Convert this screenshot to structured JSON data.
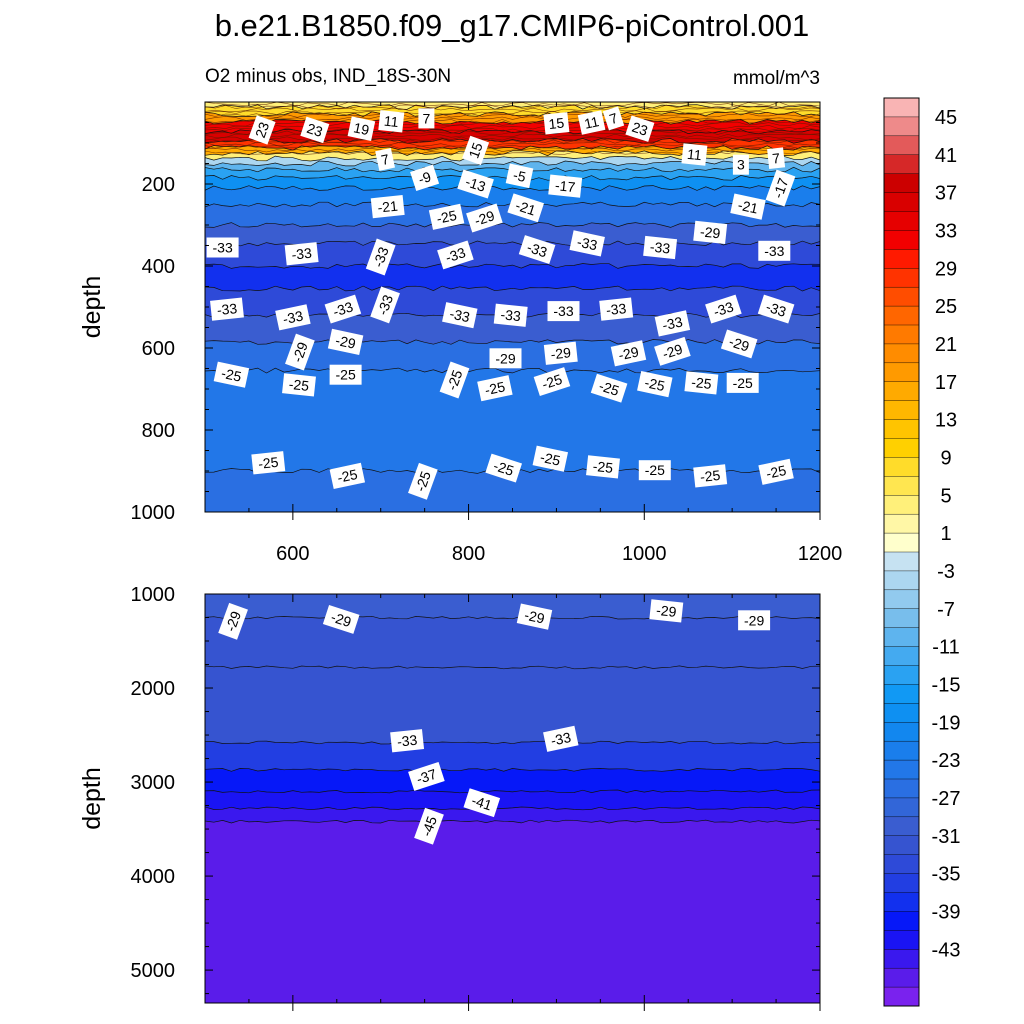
{
  "chart_data": {
    "type": "contour",
    "title": "b.e21.B1850.f09_g17.CMIP6-piControl.001",
    "subtitle_left": "O2 minus obs, IND_18S-30N",
    "units": "mmol/m^3",
    "xlim": [
      500,
      1200
    ],
    "x_ticks": [
      600,
      800,
      1000,
      1200
    ],
    "panels": [
      {
        "name": "upper",
        "ylabel": "depth",
        "ylim": [
          0,
          1000
        ],
        "y_ticks": [
          200,
          400,
          600,
          800,
          1000
        ],
        "show_x_ticklabels": true,
        "bands": [
          {
            "top": 0,
            "bottom": 12,
            "value": 5
          },
          {
            "top": 12,
            "bottom": 30,
            "value": 9
          },
          {
            "top": 30,
            "bottom": 48,
            "value": 19
          },
          {
            "top": 48,
            "bottom": 72,
            "value": 33
          },
          {
            "top": 72,
            "bottom": 95,
            "value": 37
          },
          {
            "top": 95,
            "bottom": 112,
            "value": 29
          },
          {
            "top": 112,
            "bottom": 125,
            "value": 17
          },
          {
            "top": 125,
            "bottom": 138,
            "value": 5
          },
          {
            "top": 138,
            "bottom": 150,
            "value": -3
          },
          {
            "top": 150,
            "bottom": 165,
            "value": -9
          },
          {
            "top": 165,
            "bottom": 185,
            "value": -13
          },
          {
            "top": 185,
            "bottom": 210,
            "value": -17
          },
          {
            "top": 210,
            "bottom": 250,
            "value": -21
          },
          {
            "top": 250,
            "bottom": 300,
            "value": -25
          },
          {
            "top": 300,
            "bottom": 345,
            "value": -29
          },
          {
            "top": 345,
            "bottom": 400,
            "value": -33
          },
          {
            "top": 400,
            "bottom": 455,
            "value": -37
          },
          {
            "top": 455,
            "bottom": 520,
            "value": -33
          },
          {
            "top": 520,
            "bottom": 585,
            "value": -29
          },
          {
            "top": 585,
            "bottom": 655,
            "value": -25
          },
          {
            "top": 655,
            "bottom": 900,
            "value": -23
          },
          {
            "top": 900,
            "bottom": 1000,
            "value": -25
          }
        ],
        "contour_labels": [
          {
            "x": 565,
            "y": 68,
            "text": "23"
          },
          {
            "x": 625,
            "y": 68,
            "text": "23"
          },
          {
            "x": 678,
            "y": 65,
            "text": "19"
          },
          {
            "x": 712,
            "y": 47,
            "text": "11"
          },
          {
            "x": 752,
            "y": 40,
            "text": "7"
          },
          {
            "x": 900,
            "y": 52,
            "text": "15"
          },
          {
            "x": 940,
            "y": 50,
            "text": "11"
          },
          {
            "x": 965,
            "y": 40,
            "text": "7"
          },
          {
            "x": 995,
            "y": 65,
            "text": "23"
          },
          {
            "x": 808,
            "y": 118,
            "text": "15"
          },
          {
            "x": 1057,
            "y": 128,
            "text": "11"
          },
          {
            "x": 1110,
            "y": 153,
            "text": "3"
          },
          {
            "x": 1150,
            "y": 137,
            "text": "7"
          },
          {
            "x": 705,
            "y": 140,
            "text": "7"
          },
          {
            "x": 750,
            "y": 185,
            "text": "-9"
          },
          {
            "x": 808,
            "y": 200,
            "text": "-13"
          },
          {
            "x": 858,
            "y": 180,
            "text": "-5"
          },
          {
            "x": 910,
            "y": 205,
            "text": "-17"
          },
          {
            "x": 1155,
            "y": 210,
            "text": "-17"
          },
          {
            "x": 708,
            "y": 255,
            "text": "-21"
          },
          {
            "x": 775,
            "y": 280,
            "text": "-25"
          },
          {
            "x": 818,
            "y": 283,
            "text": "-29"
          },
          {
            "x": 865,
            "y": 258,
            "text": "-21"
          },
          {
            "x": 1118,
            "y": 255,
            "text": "-21"
          },
          {
            "x": 1075,
            "y": 318,
            "text": "-29"
          },
          {
            "x": 520,
            "y": 355,
            "text": "-33"
          },
          {
            "x": 610,
            "y": 370,
            "text": "-33"
          },
          {
            "x": 700,
            "y": 378,
            "text": "-33"
          },
          {
            "x": 785,
            "y": 373,
            "text": "-33"
          },
          {
            "x": 878,
            "y": 360,
            "text": "-33"
          },
          {
            "x": 935,
            "y": 345,
            "text": "-33"
          },
          {
            "x": 1018,
            "y": 355,
            "text": "-33"
          },
          {
            "x": 1148,
            "y": 363,
            "text": "-33"
          },
          {
            "x": 525,
            "y": 505,
            "text": "-33"
          },
          {
            "x": 600,
            "y": 525,
            "text": "-33"
          },
          {
            "x": 657,
            "y": 505,
            "text": "-33"
          },
          {
            "x": 705,
            "y": 495,
            "text": "-33"
          },
          {
            "x": 790,
            "y": 520,
            "text": "-33"
          },
          {
            "x": 848,
            "y": 520,
            "text": "-33"
          },
          {
            "x": 908,
            "y": 510,
            "text": "-33"
          },
          {
            "x": 968,
            "y": 505,
            "text": "-33"
          },
          {
            "x": 1032,
            "y": 540,
            "text": "-33"
          },
          {
            "x": 1090,
            "y": 505,
            "text": "-33"
          },
          {
            "x": 1150,
            "y": 505,
            "text": "-33"
          },
          {
            "x": 660,
            "y": 585,
            "text": "-29"
          },
          {
            "x": 608,
            "y": 610,
            "text": "-29"
          },
          {
            "x": 842,
            "y": 625,
            "text": "-29"
          },
          {
            "x": 905,
            "y": 613,
            "text": "-29"
          },
          {
            "x": 982,
            "y": 613,
            "text": "-29"
          },
          {
            "x": 1032,
            "y": 608,
            "text": "-29"
          },
          {
            "x": 1108,
            "y": 590,
            "text": "-29"
          },
          {
            "x": 530,
            "y": 665,
            "text": "-25"
          },
          {
            "x": 607,
            "y": 690,
            "text": "-25"
          },
          {
            "x": 660,
            "y": 665,
            "text": "-25"
          },
          {
            "x": 784,
            "y": 678,
            "text": "-25"
          },
          {
            "x": 830,
            "y": 698,
            "text": "-25"
          },
          {
            "x": 895,
            "y": 682,
            "text": "-25"
          },
          {
            "x": 960,
            "y": 698,
            "text": "-25"
          },
          {
            "x": 1012,
            "y": 688,
            "text": "-25"
          },
          {
            "x": 1065,
            "y": 685,
            "text": "-25"
          },
          {
            "x": 1112,
            "y": 685,
            "text": "-25"
          },
          {
            "x": 572,
            "y": 880,
            "text": "-25"
          },
          {
            "x": 662,
            "y": 912,
            "text": "-25"
          },
          {
            "x": 748,
            "y": 925,
            "text": "-25"
          },
          {
            "x": 840,
            "y": 893,
            "text": "-25"
          },
          {
            "x": 893,
            "y": 870,
            "text": "-25"
          },
          {
            "x": 953,
            "y": 890,
            "text": "-25"
          },
          {
            "x": 1012,
            "y": 898,
            "text": "-25"
          },
          {
            "x": 1075,
            "y": 912,
            "text": "-25"
          },
          {
            "x": 1150,
            "y": 902,
            "text": "-25"
          }
        ]
      },
      {
        "name": "lower",
        "ylabel": "depth",
        "ylim": [
          1000,
          5350
        ],
        "y_ticks": [
          1000,
          2000,
          3000,
          4000,
          5000
        ],
        "show_x_ticklabels": false,
        "bands": [
          {
            "top": 1000,
            "bottom": 1250,
            "value": -29
          },
          {
            "top": 1250,
            "bottom": 1780,
            "value": -31
          },
          {
            "top": 1780,
            "bottom": 2580,
            "value": -31
          },
          {
            "top": 2580,
            "bottom": 2870,
            "value": -35
          },
          {
            "top": 2870,
            "bottom": 3100,
            "value": -39
          },
          {
            "top": 3100,
            "bottom": 3280,
            "value": -41
          },
          {
            "top": 3280,
            "bottom": 3420,
            "value": -43
          },
          {
            "top": 3420,
            "bottom": 5350,
            "value": -45
          }
        ],
        "contour_labels": [
          {
            "x": 532,
            "y": 1290,
            "text": "-29"
          },
          {
            "x": 655,
            "y": 1270,
            "text": "-29"
          },
          {
            "x": 875,
            "y": 1240,
            "text": "-29"
          },
          {
            "x": 1025,
            "y": 1180,
            "text": "-29"
          },
          {
            "x": 1125,
            "y": 1280,
            "text": "-29"
          },
          {
            "x": 730,
            "y": 2560,
            "text": "-33"
          },
          {
            "x": 905,
            "y": 2540,
            "text": "-33"
          },
          {
            "x": 752,
            "y": 2940,
            "text": "-37"
          },
          {
            "x": 815,
            "y": 3220,
            "text": "-41"
          },
          {
            "x": 755,
            "y": 3470,
            "text": "-45"
          }
        ]
      }
    ],
    "colorbar": {
      "labels": [
        "45",
        "41",
        "37",
        "33",
        "29",
        "25",
        "21",
        "17",
        "13",
        "9",
        "5",
        "1",
        "-3",
        "-7",
        "-11",
        "-15",
        "-19",
        "-23",
        "-27",
        "-31",
        "-35",
        "-39",
        "-43"
      ],
      "levels_top_to_bottom": [
        47,
        45,
        43,
        41,
        39,
        37,
        35,
        33,
        31,
        29,
        27,
        25,
        23,
        21,
        19,
        17,
        15,
        13,
        11,
        9,
        7,
        5,
        3,
        1,
        -1,
        -3,
        -5,
        -7,
        -9,
        -11,
        -13,
        -15,
        -17,
        -19,
        -21,
        -23,
        -25,
        -27,
        -29,
        -31,
        -33,
        -35,
        -37,
        -39,
        -41,
        -43,
        -45
      ],
      "colors_top_to_bottom": [
        "#f9b4b4",
        "#ee8a8a",
        "#e35a5a",
        "#d62828",
        "#cc0000",
        "#d90000",
        "#e60000",
        "#f20000",
        "#ff1a00",
        "#ff3300",
        "#ff4d00",
        "#ff6600",
        "#ff7a00",
        "#ff8c00",
        "#ff9a00",
        "#ffaa00",
        "#ffb700",
        "#ffc400",
        "#ffd000",
        "#ffdc2a",
        "#ffe650",
        "#fff07a",
        "#fff7a6",
        "#ffffcc",
        "#c6e2f2",
        "#acd6f0",
        "#92caee",
        "#78beec",
        "#5eb4ee",
        "#44aaf0",
        "#2aa2f2",
        "#1199f4",
        "#0e90f2",
        "#1287ef",
        "#1a7eec",
        "#2277e8",
        "#2a6fe2",
        "#3266d8",
        "#3a5dd0",
        "#3654d0",
        "#2e4ad8",
        "#223ee2",
        "#1230ee",
        "#0618f8",
        "#1a14f4",
        "#3a18ee",
        "#5a1cea",
        "#7a22ee"
      ]
    }
  }
}
